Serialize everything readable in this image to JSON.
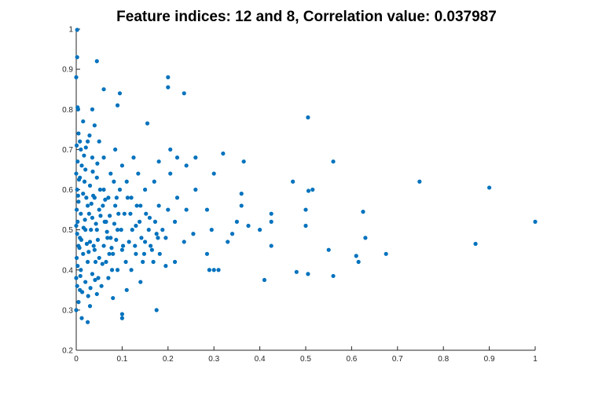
{
  "chart_data": {
    "type": "scatter",
    "title": "Feature indices: 12 and 8, Correlation value: 0.037987",
    "xlabel": "",
    "ylabel": "",
    "xlim": [
      0,
      1
    ],
    "ylim": [
      0.2,
      1
    ],
    "xticks": [
      "0",
      "0.1",
      "0.2",
      "0.3",
      "0.4",
      "0.5",
      "0.6",
      "0.7",
      "0.8",
      "0.9",
      "1"
    ],
    "yticks": [
      "0.2",
      "0.3",
      "0.4",
      "0.5",
      "0.6",
      "0.7",
      "0.8",
      "0.9",
      "1"
    ],
    "grid": false,
    "marker_color": "#0072bd",
    "series": [
      {
        "points": [
          [
            0.002,
            0.998
          ],
          [
            0.002,
            0.93
          ],
          [
            0.0,
            0.88
          ],
          [
            0.003,
            0.805
          ],
          [
            0.004,
            0.8
          ],
          [
            0.045,
            0.92
          ],
          [
            0.2,
            0.88
          ],
          [
            0.2,
            0.855
          ],
          [
            0.235,
            0.84
          ],
          [
            0.095,
            0.84
          ],
          [
            0.06,
            0.85
          ],
          [
            0.09,
            0.81
          ],
          [
            0.035,
            0.8
          ],
          [
            0.505,
            0.78
          ],
          [
            0.155,
            0.765
          ],
          [
            0.56,
            0.67
          ],
          [
            0.748,
            0.62
          ],
          [
            0.9,
            0.605
          ],
          [
            1.0,
            0.52
          ],
          [
            0.472,
            0.62
          ],
          [
            0.515,
            0.6
          ],
          [
            0.506,
            0.597
          ],
          [
            0.625,
            0.545
          ],
          [
            0.63,
            0.48
          ],
          [
            0.675,
            0.44
          ],
          [
            0.61,
            0.435
          ],
          [
            0.615,
            0.42
          ],
          [
            0.87,
            0.465
          ],
          [
            0.55,
            0.45
          ],
          [
            0.5,
            0.55
          ],
          [
            0.5,
            0.51
          ],
          [
            0.48,
            0.395
          ],
          [
            0.505,
            0.39
          ],
          [
            0.56,
            0.385
          ],
          [
            0.41,
            0.375
          ],
          [
            0.425,
            0.46
          ],
          [
            0.425,
            0.54
          ],
          [
            0.425,
            0.52
          ],
          [
            0.375,
            0.51
          ],
          [
            0.4,
            0.5
          ],
          [
            0.365,
            0.67
          ],
          [
            0.36,
            0.59
          ],
          [
            0.36,
            0.56
          ],
          [
            0.35,
            0.52
          ],
          [
            0.34,
            0.49
          ],
          [
            0.33,
            0.47
          ],
          [
            0.32,
            0.69
          ],
          [
            0.3,
            0.64
          ],
          [
            0.295,
            0.5
          ],
          [
            0.285,
            0.55
          ],
          [
            0.285,
            0.44
          ],
          [
            0.29,
            0.4
          ],
          [
            0.3,
            0.4
          ],
          [
            0.31,
            0.4
          ],
          [
            0.26,
            0.68
          ],
          [
            0.26,
            0.6
          ],
          [
            0.255,
            0.49
          ],
          [
            0.24,
            0.66
          ],
          [
            0.24,
            0.55
          ],
          [
            0.235,
            0.47
          ],
          [
            0.22,
            0.68
          ],
          [
            0.22,
            0.58
          ],
          [
            0.215,
            0.52
          ],
          [
            0.215,
            0.42
          ],
          [
            0.205,
            0.7
          ],
          [
            0.205,
            0.64
          ],
          [
            0.2,
            0.55
          ],
          [
            0.195,
            0.48
          ],
          [
            0.195,
            0.41
          ],
          [
            0.18,
            0.67
          ],
          [
            0.18,
            0.56
          ],
          [
            0.175,
            0.49
          ],
          [
            0.175,
            0.3
          ],
          [
            0.17,
            0.62
          ],
          [
            0.165,
            0.45
          ],
          [
            0.16,
            0.53
          ],
          [
            0.15,
            0.6
          ],
          [
            0.15,
            0.47
          ],
          [
            0.145,
            0.42
          ],
          [
            0.14,
            0.56
          ],
          [
            0.14,
            0.37
          ],
          [
            0.135,
            0.64
          ],
          [
            0.13,
            0.51
          ],
          [
            0.13,
            0.44
          ],
          [
            0.125,
            0.68
          ],
          [
            0.12,
            0.58
          ],
          [
            0.12,
            0.4
          ],
          [
            0.115,
            0.47
          ],
          [
            0.11,
            0.62
          ],
          [
            0.11,
            0.35
          ],
          [
            0.105,
            0.54
          ],
          [
            0.1,
            0.66
          ],
          [
            0.1,
            0.45
          ],
          [
            0.1,
            0.29
          ],
          [
            0.1,
            0.28
          ],
          [
            0.095,
            0.6
          ],
          [
            0.09,
            0.5
          ],
          [
            0.09,
            0.4
          ],
          [
            0.085,
            0.7
          ],
          [
            0.085,
            0.56
          ],
          [
            0.08,
            0.44
          ],
          [
            0.08,
            0.33
          ],
          [
            0.075,
            0.64
          ],
          [
            0.075,
            0.48
          ],
          [
            0.07,
            0.58
          ],
          [
            0.07,
            0.38
          ],
          [
            0.065,
            0.52
          ],
          [
            0.065,
            0.42
          ],
          [
            0.06,
            0.68
          ],
          [
            0.06,
            0.6
          ],
          [
            0.06,
            0.46
          ],
          [
            0.055,
            0.36
          ],
          [
            0.05,
            0.72
          ],
          [
            0.05,
            0.55
          ],
          [
            0.05,
            0.43
          ],
          [
            0.045,
            0.63
          ],
          [
            0.045,
            0.5
          ],
          [
            0.045,
            0.34
          ],
          [
            0.04,
            0.76
          ],
          [
            0.04,
            0.58
          ],
          [
            0.04,
            0.45
          ],
          [
            0.035,
            0.68
          ],
          [
            0.035,
            0.53
          ],
          [
            0.035,
            0.39
          ],
          [
            0.03,
            0.61
          ],
          [
            0.03,
            0.47
          ],
          [
            0.03,
            0.31
          ],
          [
            0.025,
            0.72
          ],
          [
            0.025,
            0.56
          ],
          [
            0.025,
            0.42
          ],
          [
            0.02,
            0.65
          ],
          [
            0.02,
            0.5
          ],
          [
            0.02,
            0.37
          ],
          [
            0.015,
            0.77
          ],
          [
            0.015,
            0.59
          ],
          [
            0.015,
            0.44
          ],
          [
            0.012,
            0.28
          ],
          [
            0.01,
            0.7
          ],
          [
            0.01,
            0.54
          ],
          [
            0.01,
            0.4
          ],
          [
            0.008,
            0.63
          ],
          [
            0.008,
            0.48
          ],
          [
            0.008,
            0.35
          ],
          [
            0.005,
            0.74
          ],
          [
            0.005,
            0.57
          ],
          [
            0.005,
            0.46
          ],
          [
            0.005,
            0.32
          ],
          [
            0.003,
            0.67
          ],
          [
            0.003,
            0.52
          ],
          [
            0.003,
            0.41
          ],
          [
            0.002,
            0.6
          ],
          [
            0.002,
            0.49
          ],
          [
            0.002,
            0.36
          ],
          [
            0.001,
            0.71
          ],
          [
            0.001,
            0.55
          ],
          [
            0.001,
            0.43
          ],
          [
            0.0,
            0.64
          ],
          [
            0.0,
            0.51
          ],
          [
            0.0,
            0.38
          ],
          [
            0.0,
            0.3
          ],
          [
            0.025,
            0.27
          ],
          [
            0.008,
            0.72
          ],
          [
            0.012,
            0.66
          ],
          [
            0.018,
            0.62
          ],
          [
            0.022,
            0.58
          ],
          [
            0.028,
            0.54
          ],
          [
            0.032,
            0.5
          ],
          [
            0.038,
            0.46
          ],
          [
            0.042,
            0.42
          ],
          [
            0.048,
            0.38
          ],
          [
            0.052,
            0.6
          ],
          [
            0.058,
            0.56
          ],
          [
            0.062,
            0.52
          ],
          [
            0.068,
            0.48
          ],
          [
            0.072,
            0.44
          ],
          [
            0.078,
            0.4
          ],
          [
            0.082,
            0.62
          ],
          [
            0.088,
            0.58
          ],
          [
            0.092,
            0.54
          ],
          [
            0.098,
            0.5
          ],
          [
            0.102,
            0.46
          ],
          [
            0.108,
            0.42
          ],
          [
            0.112,
            0.58
          ],
          [
            0.118,
            0.54
          ],
          [
            0.122,
            0.5
          ],
          [
            0.128,
            0.46
          ],
          [
            0.132,
            0.56
          ],
          [
            0.138,
            0.52
          ],
          [
            0.142,
            0.48
          ],
          [
            0.148,
            0.44
          ],
          [
            0.152,
            0.54
          ],
          [
            0.158,
            0.5
          ],
          [
            0.162,
            0.46
          ],
          [
            0.168,
            0.42
          ],
          [
            0.172,
            0.52
          ],
          [
            0.178,
            0.48
          ],
          [
            0.182,
            0.44
          ],
          [
            0.188,
            0.5
          ],
          [
            0.007,
            0.455
          ],
          [
            0.011,
            0.475
          ],
          [
            0.016,
            0.505
          ],
          [
            0.019,
            0.525
          ],
          [
            0.023,
            0.465
          ],
          [
            0.027,
            0.445
          ],
          [
            0.033,
            0.565
          ],
          [
            0.037,
            0.585
          ],
          [
            0.043,
            0.515
          ],
          [
            0.047,
            0.475
          ],
          [
            0.053,
            0.535
          ],
          [
            0.057,
            0.415
          ],
          [
            0.063,
            0.575
          ],
          [
            0.067,
            0.495
          ],
          [
            0.073,
            0.535
          ],
          [
            0.077,
            0.455
          ],
          [
            0.083,
            0.515
          ],
          [
            0.087,
            0.475
          ],
          [
            0.004,
            0.585
          ],
          [
            0.006,
            0.625
          ],
          [
            0.009,
            0.385
          ],
          [
            0.013,
            0.345
          ],
          [
            0.017,
            0.685
          ],
          [
            0.021,
            0.705
          ],
          [
            0.026,
            0.335
          ],
          [
            0.029,
            0.735
          ],
          [
            0.031,
            0.355
          ],
          [
            0.036,
            0.645
          ],
          [
            0.041,
            0.375
          ],
          [
            0.046,
            0.665
          ]
        ]
      }
    ]
  }
}
